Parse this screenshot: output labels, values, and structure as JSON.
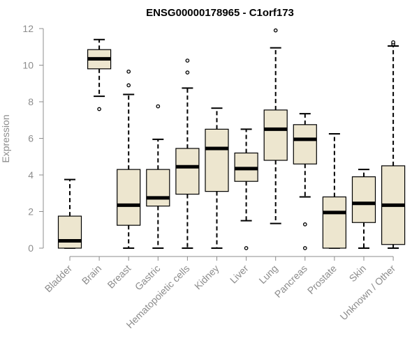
{
  "chart_data": {
    "type": "box",
    "title": "ENSG00000178965 - C1orf173",
    "xlabel": "",
    "ylabel": "Expression",
    "ylim": [
      0,
      12
    ],
    "yticks": [
      0,
      2,
      4,
      6,
      8,
      10,
      12
    ],
    "grid": false,
    "legend": "none",
    "box_fill": "#ede6cf",
    "box_stroke": "#000000",
    "axis_text_color": "#8c8c8c",
    "categories": [
      "Bladder",
      "Brain",
      "Breast",
      "Gastric",
      "Hematopoietic cells",
      "Kidney",
      "Liver",
      "Lung",
      "Pancreas",
      "Prostate",
      "Skin",
      "Unknown / Other"
    ],
    "boxes": [
      {
        "whisker_low": 0,
        "q1": 0,
        "median": 0.4,
        "q3": 1.75,
        "whisker_high": 3.75,
        "outliers": []
      },
      {
        "whisker_low": 8.3,
        "q1": 9.8,
        "median": 10.35,
        "q3": 10.85,
        "whisker_high": 11.4,
        "outliers": [
          7.6
        ]
      },
      {
        "whisker_low": 0,
        "q1": 1.25,
        "median": 2.35,
        "q3": 4.3,
        "whisker_high": 8.4,
        "outliers": [
          8.9,
          9.65
        ]
      },
      {
        "whisker_low": 0,
        "q1": 2.3,
        "median": 2.75,
        "q3": 4.3,
        "whisker_high": 5.95,
        "outliers": [
          7.75
        ]
      },
      {
        "whisker_low": 0,
        "q1": 2.95,
        "median": 4.45,
        "q3": 5.45,
        "whisker_high": 8.75,
        "outliers": [
          9.6,
          10.25
        ]
      },
      {
        "whisker_low": 0,
        "q1": 3.1,
        "median": 5.45,
        "q3": 6.5,
        "whisker_high": 7.65,
        "outliers": []
      },
      {
        "whisker_low": 1.5,
        "q1": 3.65,
        "median": 4.35,
        "q3": 5.2,
        "whisker_high": 6.5,
        "outliers": [
          0
        ]
      },
      {
        "whisker_low": 1.35,
        "q1": 4.8,
        "median": 6.5,
        "q3": 7.55,
        "whisker_high": 10.95,
        "outliers": [
          11.9
        ]
      },
      {
        "whisker_low": 2.8,
        "q1": 4.6,
        "median": 5.95,
        "q3": 6.75,
        "whisker_high": 7.35,
        "outliers": [
          1.3,
          0
        ]
      },
      {
        "whisker_low": 0,
        "q1": 0,
        "median": 1.95,
        "q3": 2.8,
        "whisker_high": 6.25,
        "outliers": []
      },
      {
        "whisker_low": 0,
        "q1": 1.4,
        "median": 2.45,
        "q3": 3.9,
        "whisker_high": 4.3,
        "outliers": []
      },
      {
        "whisker_low": 0,
        "q1": 0.2,
        "median": 2.35,
        "q3": 4.5,
        "whisker_high": 11.05,
        "outliers": [
          11.15,
          11.25
        ]
      }
    ]
  }
}
